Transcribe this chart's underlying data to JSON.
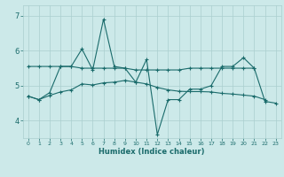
{
  "xlabel": "Humidex (Indice chaleur)",
  "background_color": "#cce9e9",
  "grid_color": "#aacfcf",
  "line_color": "#1a6b6b",
  "x_values": [
    0,
    1,
    2,
    3,
    4,
    5,
    6,
    7,
    8,
    9,
    10,
    11,
    12,
    13,
    14,
    15,
    16,
    17,
    18,
    19,
    20,
    21,
    22,
    23
  ],
  "line1": [
    4.7,
    4.6,
    4.8,
    5.55,
    5.55,
    6.05,
    5.45,
    6.9,
    5.55,
    5.5,
    5.1,
    5.75,
    3.6,
    4.6,
    4.6,
    4.9,
    4.9,
    5.0,
    5.55,
    5.55,
    5.8,
    5.5,
    4.55,
    4.5
  ],
  "line2_x": [
    0,
    1,
    2,
    3,
    4,
    5,
    6,
    7,
    8,
    9,
    10,
    11,
    12,
    13,
    14,
    15,
    16,
    17,
    18,
    19,
    20,
    21
  ],
  "line2_y": [
    5.55,
    5.55,
    5.55,
    5.55,
    5.55,
    5.5,
    5.5,
    5.5,
    5.5,
    5.5,
    5.45,
    5.45,
    5.45,
    5.45,
    5.45,
    5.5,
    5.5,
    5.5,
    5.5,
    5.5,
    5.5,
    5.5
  ],
  "line3_x": [
    0,
    1,
    2,
    3,
    4,
    5,
    6,
    7,
    8,
    9,
    10,
    11,
    12,
    13,
    14,
    15,
    16,
    17,
    18,
    19,
    20,
    21,
    22
  ],
  "line3_y": [
    4.7,
    4.6,
    4.72,
    4.82,
    4.88,
    5.05,
    5.02,
    5.08,
    5.1,
    5.15,
    5.1,
    5.05,
    4.95,
    4.88,
    4.84,
    4.83,
    4.83,
    4.82,
    4.78,
    4.76,
    4.73,
    4.7,
    4.6
  ],
  "ylim": [
    3.5,
    7.3
  ],
  "yticks": [
    4,
    5,
    6,
    7
  ]
}
